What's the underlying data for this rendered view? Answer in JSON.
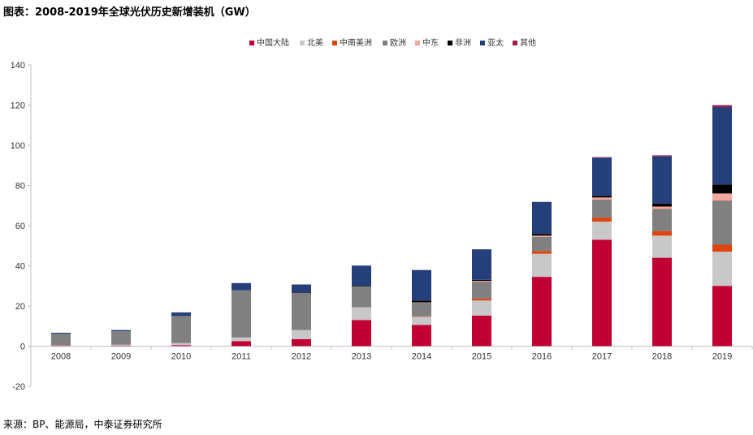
{
  "header": {
    "title": "图表：2008-2019年全球光伏历史新增装机（GW）"
  },
  "footer": {
    "source": "来源：BP、能源局，中泰证券研究所"
  },
  "chart_data": {
    "type": "bar",
    "stacked": true,
    "categories": [
      "2008",
      "2009",
      "2010",
      "2011",
      "2012",
      "2013",
      "2014",
      "2015",
      "2016",
      "2017",
      "2018",
      "2019"
    ],
    "ylim": [
      -20,
      140
    ],
    "yticks": [
      -20,
      0,
      20,
      40,
      60,
      80,
      100,
      120,
      140
    ],
    "legend_position": "top-center",
    "series": [
      {
        "name": "中国大陆",
        "color": "#c00033",
        "values": [
          0.05,
          0.2,
          0.5,
          2.5,
          3.5,
          13,
          10.6,
          15.2,
          34.5,
          53,
          44,
          30
        ]
      },
      {
        "name": "北美",
        "color": "#c8c8c8",
        "values": [
          0.3,
          0.5,
          1,
          1.8,
          4.5,
          6.3,
          4,
          7.5,
          11.5,
          9,
          11,
          17
        ]
      },
      {
        "name": "中南美洲",
        "color": "#e0440e",
        "values": [
          0,
          0,
          0,
          0,
          0,
          0,
          0.2,
          0.9,
          1.4,
          2,
          2.3,
          3.5
        ]
      },
      {
        "name": "欧洲",
        "color": "#808080",
        "values": [
          5.8,
          6.7,
          13.5,
          23.5,
          18.5,
          10.5,
          6.8,
          8.5,
          7,
          9,
          11,
          22
        ]
      },
      {
        "name": "中东",
        "color": "#f4a79a",
        "values": [
          0,
          0,
          0,
          0,
          0,
          0,
          0.2,
          0.4,
          0.6,
          1,
          1.2,
          3.5
        ]
      },
      {
        "name": "非洲",
        "color": "#000000",
        "values": [
          0,
          0,
          0,
          0,
          0.2,
          0.3,
          0.8,
          0.5,
          0.8,
          0.8,
          1.5,
          4.5
        ]
      },
      {
        "name": "亚太",
        "color": "#243f7a",
        "values": [
          0.5,
          0.6,
          1.8,
          3.6,
          4,
          10,
          15.3,
          15.2,
          16,
          19,
          23.5,
          38.5
        ]
      },
      {
        "name": "其他",
        "color": "#a0204a",
        "values": [
          0,
          0,
          0,
          0,
          0,
          0,
          0,
          0,
          0,
          0.3,
          0.5,
          1
        ]
      }
    ]
  }
}
